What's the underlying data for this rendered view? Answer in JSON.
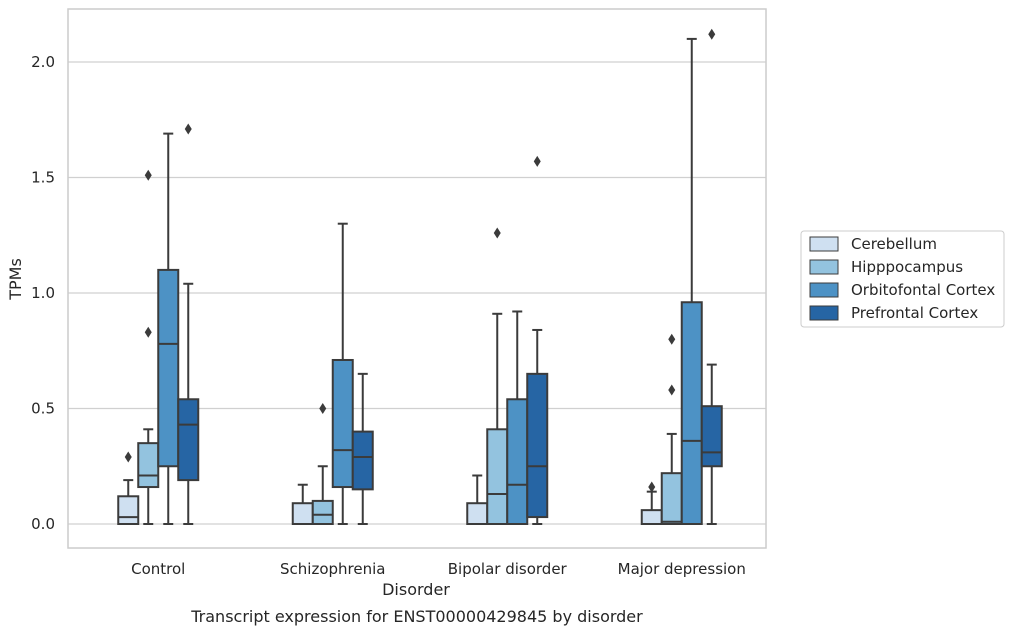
{
  "chart_data": {
    "type": "box",
    "caption": "Transcript expression for ENST00000429845 by disorder",
    "xlabel": "Disorder",
    "ylabel": "TPMs",
    "ylim": [
      -0.1,
      2.23
    ],
    "yticks": [
      "0.0",
      "0.5",
      "1.0",
      "1.5",
      "2.0"
    ],
    "ytick_values": [
      0.0,
      0.5,
      1.0,
      1.5,
      2.0
    ],
    "categories": [
      "Control",
      "Schizophrenia",
      "Bipolar disorder",
      "Major depression"
    ],
    "grid": "horizontal",
    "legend_placement": "right",
    "series": [
      {
        "name": "Cerebellum",
        "color": "#cfe0f1",
        "boxes": [
          {
            "min": 0.0,
            "q1": 0.0,
            "median": 0.03,
            "q3": 0.12,
            "max": 0.19,
            "outliers": [
              0.29
            ]
          },
          {
            "min": 0.0,
            "q1": 0.0,
            "median": 0.0,
            "q3": 0.09,
            "max": 0.17,
            "outliers": []
          },
          {
            "min": 0.0,
            "q1": 0.0,
            "median": 0.0,
            "q3": 0.09,
            "max": 0.21,
            "outliers": []
          },
          {
            "min": 0.0,
            "q1": 0.0,
            "median": 0.0,
            "q3": 0.06,
            "max": 0.14,
            "outliers": [
              0.16
            ]
          }
        ]
      },
      {
        "name": "Hipppocampus",
        "color": "#93c3df",
        "boxes": [
          {
            "min": 0.0,
            "q1": 0.16,
            "median": 0.21,
            "q3": 0.35,
            "max": 0.41,
            "outliers": [
              0.83,
              1.51
            ]
          },
          {
            "min": 0.0,
            "q1": 0.0,
            "median": 0.04,
            "q3": 0.1,
            "max": 0.25,
            "outliers": [
              0.5
            ]
          },
          {
            "min": 0.0,
            "q1": 0.0,
            "median": 0.13,
            "q3": 0.41,
            "max": 0.91,
            "outliers": [
              1.26
            ]
          },
          {
            "min": 0.0,
            "q1": 0.0,
            "median": 0.01,
            "q3": 0.22,
            "max": 0.39,
            "outliers": [
              0.58,
              0.8
            ]
          }
        ]
      },
      {
        "name": "Orbitofontal Cortex",
        "color": "#4d92c5",
        "boxes": [
          {
            "min": 0.0,
            "q1": 0.25,
            "median": 0.78,
            "q3": 1.1,
            "max": 1.69,
            "outliers": []
          },
          {
            "min": 0.0,
            "q1": 0.16,
            "median": 0.32,
            "q3": 0.71,
            "max": 1.3,
            "outliers": []
          },
          {
            "min": 0.0,
            "q1": 0.0,
            "median": 0.17,
            "q3": 0.54,
            "max": 0.92,
            "outliers": []
          },
          {
            "min": 0.0,
            "q1": 0.0,
            "median": 0.36,
            "q3": 0.96,
            "max": 2.1,
            "outliers": []
          }
        ]
      },
      {
        "name": "Prefrontal Cortex",
        "color": "#2665a4",
        "boxes": [
          {
            "min": 0.0,
            "q1": 0.19,
            "median": 0.43,
            "q3": 0.54,
            "max": 1.04,
            "outliers": [
              1.71
            ]
          },
          {
            "min": 0.0,
            "q1": 0.15,
            "median": 0.29,
            "q3": 0.4,
            "max": 0.65,
            "outliers": []
          },
          {
            "min": 0.0,
            "q1": 0.03,
            "median": 0.25,
            "q3": 0.65,
            "max": 0.84,
            "outliers": [
              1.57
            ]
          },
          {
            "min": 0.0,
            "q1": 0.25,
            "median": 0.31,
            "q3": 0.51,
            "max": 0.69,
            "outliers": [
              2.12
            ]
          }
        ]
      }
    ]
  }
}
